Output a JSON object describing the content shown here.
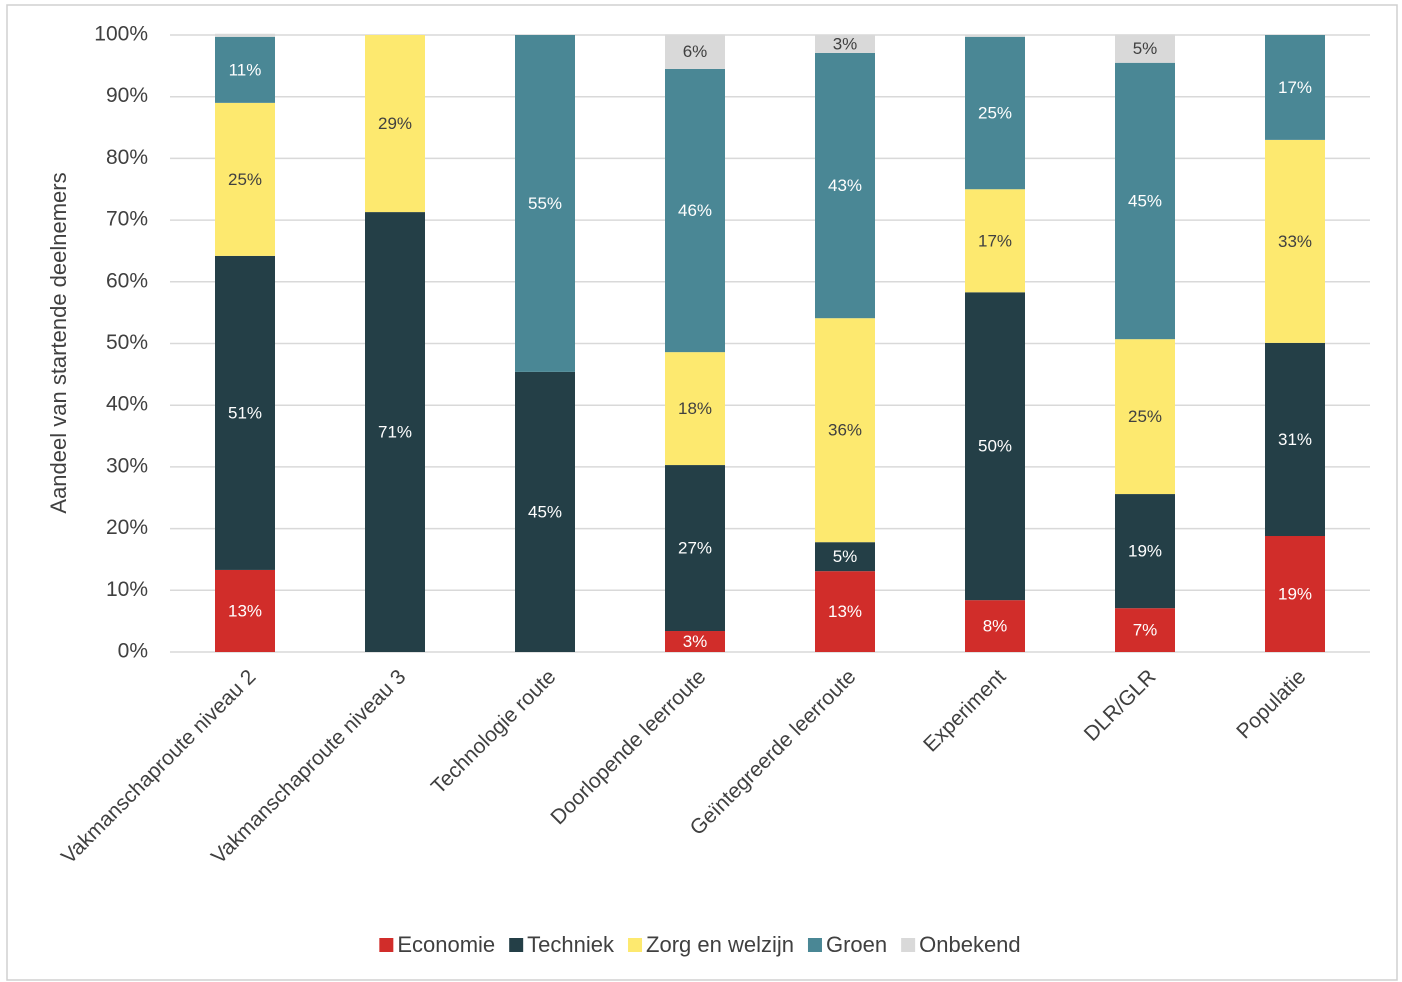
{
  "chart_data": {
    "type": "stacked_bar",
    "y_label": "Aandeel van startende deelnemers",
    "categories": [
      "Vakmanschaproute niveau 2",
      "Vakmanschaproute niveau 3",
      "Technologie route",
      "Doorlopende leerroute",
      "Geïntegreerde leerroute",
      "Experiment",
      "DLR/GLR",
      "Populatie"
    ],
    "series": [
      {
        "name": "Economie",
        "color": "#d12d2a",
        "values": [
          13.3,
          0,
          0,
          3.4,
          13.1,
          8.4,
          7.1,
          18.8
        ],
        "value_labels": [
          "13%",
          null,
          null,
          "3%",
          "13%",
          "8%",
          "7%",
          "19%"
        ]
      },
      {
        "name": "Techniek",
        "color": "#243f47",
        "values": [
          50.9,
          71.3,
          45.4,
          26.9,
          4.7,
          49.9,
          18.5,
          31.3
        ],
        "value_labels": [
          "51%",
          "71%",
          "45%",
          "27%",
          "5%",
          "50%",
          "19%",
          "31%"
        ]
      },
      {
        "name": "Zorg en welzijn",
        "color": "#fde96f",
        "values": [
          24.8,
          28.7,
          0,
          18.3,
          36.3,
          16.7,
          25.1,
          32.9
        ],
        "value_labels": [
          "25%",
          "29%",
          null,
          "18%",
          "36%",
          "17%",
          "25%",
          "33%"
        ]
      },
      {
        "name": "Groen",
        "color": "#4a8795",
        "values": [
          10.7,
          0,
          54.6,
          45.9,
          43.0,
          24.7,
          44.8,
          17.0
        ],
        "value_labels": [
          "11%",
          null,
          "55%",
          "46%",
          "43%",
          "25%",
          "45%",
          "17%"
        ]
      },
      {
        "name": "Onbekend",
        "color": "#d9d9d9",
        "values": [
          0.5,
          0,
          0,
          5.6,
          2.9,
          0.3,
          4.6,
          0
        ],
        "value_labels": [
          null,
          null,
          null,
          "6%",
          "3%",
          null,
          "5%",
          null
        ]
      }
    ],
    "ylim": [
      0,
      100
    ],
    "yticks": [
      {
        "value": 0,
        "label": "0%"
      },
      {
        "value": 10,
        "label": "10%"
      },
      {
        "value": 20,
        "label": "20%"
      },
      {
        "value": 30,
        "label": "30%"
      },
      {
        "value": 40,
        "label": "40%"
      },
      {
        "value": 50,
        "label": "50%"
      },
      {
        "value": 60,
        "label": "60%"
      },
      {
        "value": 70,
        "label": "70%"
      },
      {
        "value": 80,
        "label": "80%"
      },
      {
        "value": 90,
        "label": "90%"
      },
      {
        "value": 100,
        "label": "100%"
      }
    ],
    "grid": true,
    "legend": "bottom"
  }
}
